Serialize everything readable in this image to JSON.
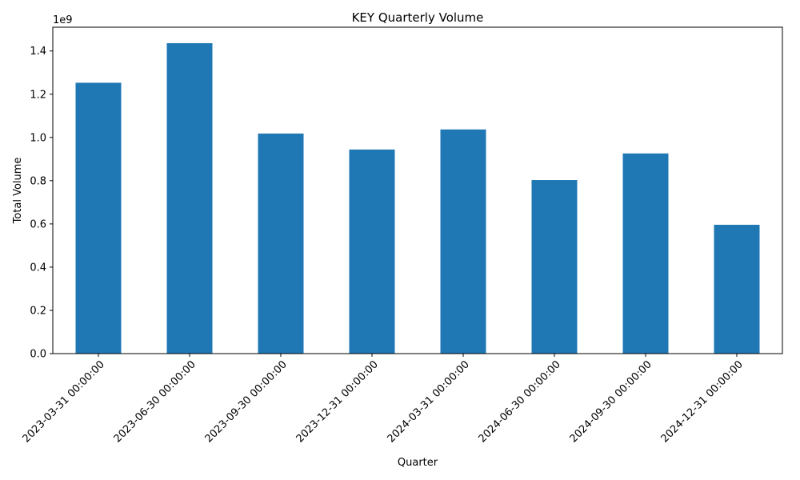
{
  "chart_data": {
    "type": "bar",
    "title": "KEY Quarterly Volume",
    "xlabel": "Quarter",
    "ylabel": "Total Volume",
    "y_scale_label": "1e9",
    "categories": [
      "2023-03-31 00:00:00",
      "2023-06-30 00:00:00",
      "2023-09-30 00:00:00",
      "2023-12-31 00:00:00",
      "2024-03-31 00:00:00",
      "2024-06-30 00:00:00",
      "2024-09-30 00:00:00",
      "2024-12-31 00:00:00"
    ],
    "values": [
      1.253,
      1.436,
      1.018,
      0.944,
      1.037,
      0.803,
      0.926,
      0.596
    ],
    "ylim": [
      0,
      1.51
    ],
    "yticks": [
      0.0,
      0.2,
      0.4,
      0.6,
      0.8,
      1.0,
      1.2,
      1.4
    ],
    "ytick_labels": [
      "0.0",
      "0.2",
      "0.4",
      "0.6",
      "0.8",
      "1.0",
      "1.2",
      "1.4"
    ],
    "bar_color": "#1f77b4",
    "grid": false,
    "legend": "none"
  }
}
